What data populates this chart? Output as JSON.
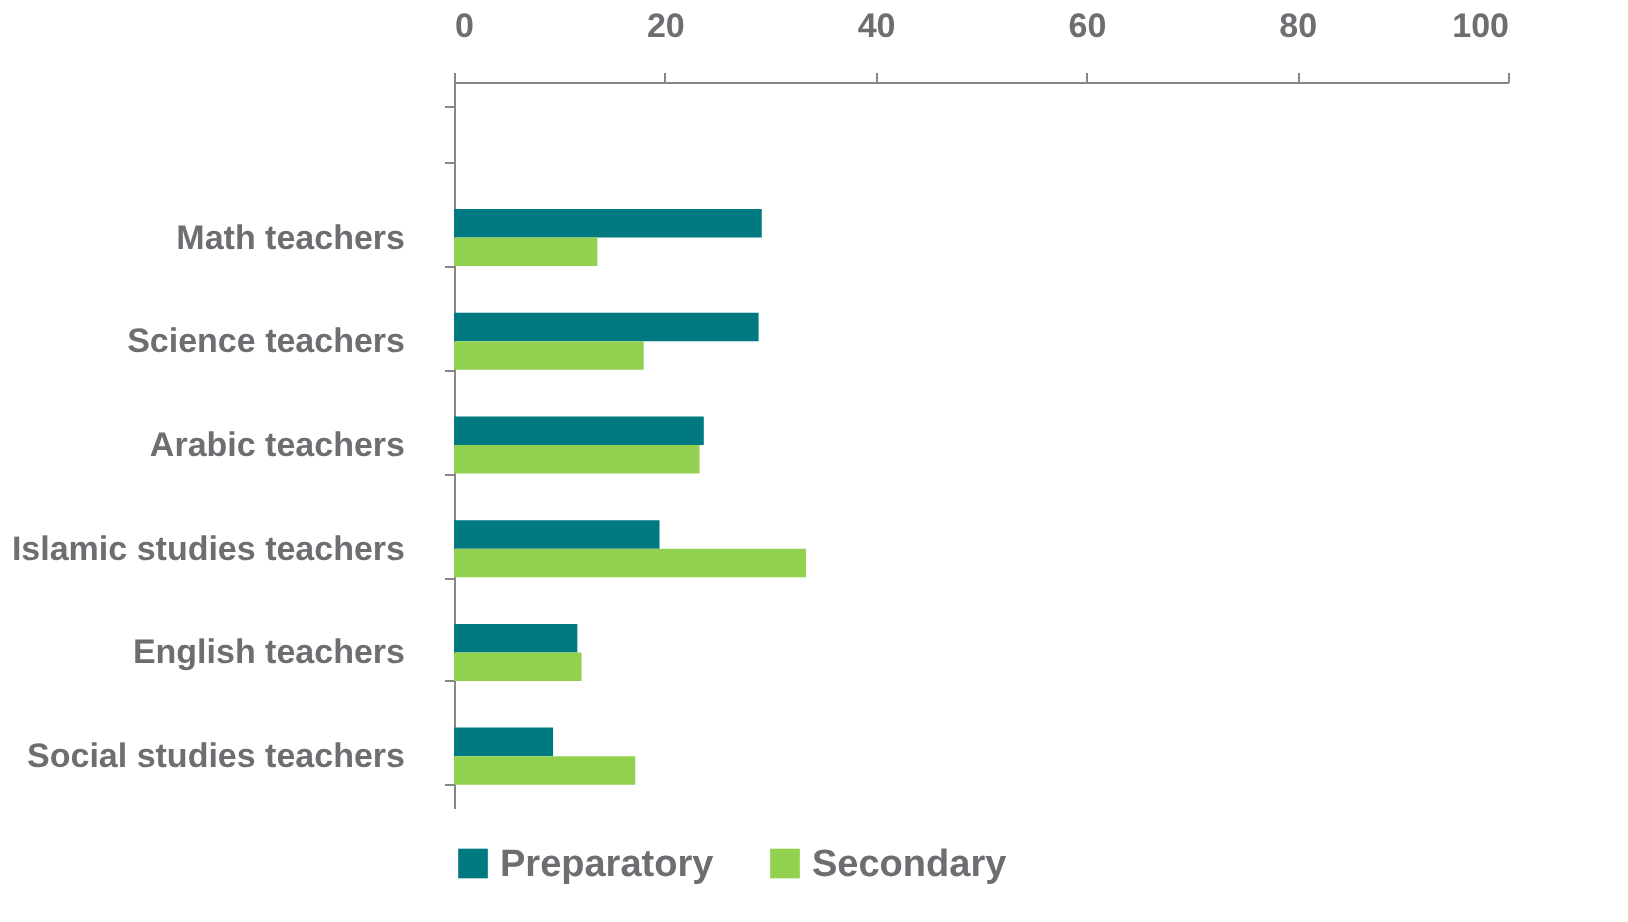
{
  "chart_data": {
    "type": "bar",
    "orientation": "horizontal",
    "categories": [
      null,
      "Math teachers",
      "Science teachers",
      "Arabic teachers",
      "Islamic studies teachers",
      "English teachers",
      "Social studies teachers"
    ],
    "series": [
      {
        "name": "Preparatory",
        "color": "#007a80",
        "values": [
          null,
          29.2,
          28.9,
          23.7,
          19.5,
          11.7,
          9.4
        ]
      },
      {
        "name": "Secondary",
        "color": "#92d050",
        "values": [
          null,
          13.6,
          18.0,
          23.3,
          33.4,
          12.1,
          17.2
        ]
      }
    ],
    "xlim": [
      0,
      100
    ],
    "xticks": [
      0,
      20,
      40,
      60,
      80,
      100
    ],
    "grid": false,
    "legend": "bottom"
  }
}
